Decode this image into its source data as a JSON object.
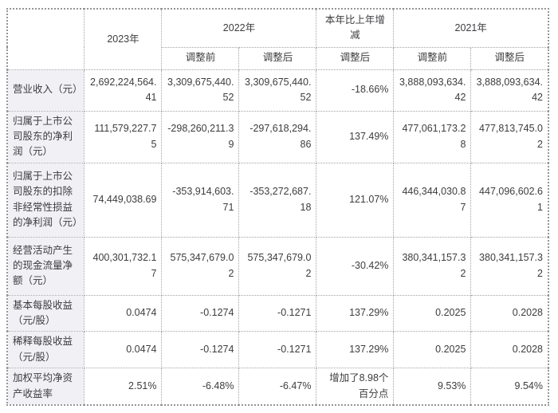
{
  "table": {
    "title_hint": "财务摘要表",
    "columns": {
      "y2023": "2023年",
      "y2022": "2022年",
      "change": "本年比上年增减",
      "y2021": "2021年"
    },
    "subheaders": [
      "调整前",
      "调整后",
      "调整后",
      "调整前",
      "调整后"
    ],
    "rows": [
      {
        "label": "营业收入（元）",
        "values": [
          "2,692,224,564.41",
          "3,309,675,440.52",
          "3,309,675,440.52",
          "-18.66%",
          "3,888,093,634.42",
          "3,888,093,634.42"
        ]
      },
      {
        "label": "归属于上市公司股东的净利润（元）",
        "values": [
          "111,579,227.75",
          "-298,260,211.39",
          "-297,618,294.86",
          "137.49%",
          "477,061,173.28",
          "477,813,745.02"
        ]
      },
      {
        "label": "归属于上市公司股东的扣除非经常性损益的净利润（元）",
        "values": [
          "74,449,038.69",
          "-353,914,603.71",
          "-353,272,687.18",
          "121.07%",
          "446,344,030.87",
          "447,096,602.61"
        ]
      },
      {
        "label": "经营活动产生的现金流量净额（元）",
        "values": [
          "400,301,732.17",
          "575,347,679.02",
          "575,347,679.02",
          "-30.42%",
          "380,341,157.32",
          "380,341,157.32"
        ]
      },
      {
        "label": "基本每股收益（元/股）",
        "values": [
          "0.0474",
          "-0.1274",
          "-0.1271",
          "137.29%",
          "0.2025",
          "0.2028"
        ]
      },
      {
        "label": "稀释每股收益（元/股）",
        "values": [
          "0.0474",
          "-0.1274",
          "-0.1271",
          "137.29%",
          "0.2025",
          "0.2028"
        ]
      },
      {
        "label": "加权平均净资产收益率",
        "values": [
          "2.51%",
          "-6.48%",
          "-6.47%",
          "增加了8.98个百分点",
          "9.53%",
          "9.54%"
        ]
      }
    ],
    "colors": {
      "label_background": "#f1f1f5",
      "border": "#a3a3a8",
      "text": "#3d3d40"
    }
  }
}
